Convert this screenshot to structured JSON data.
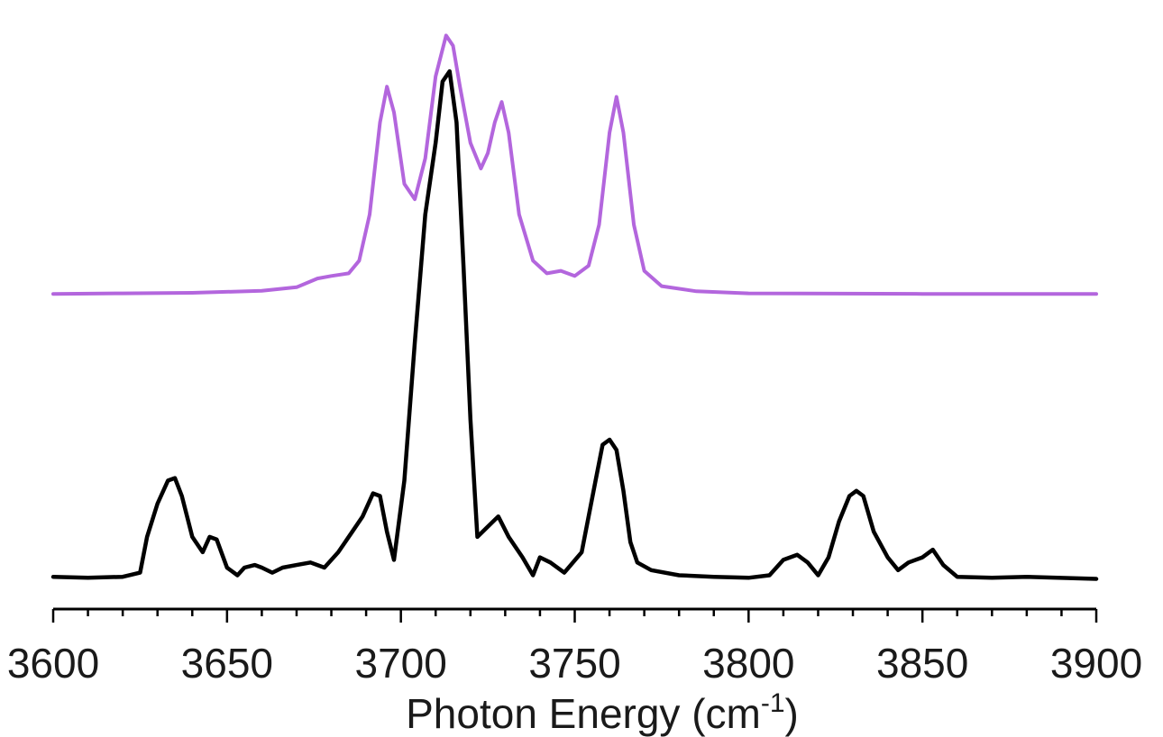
{
  "chart_data": {
    "type": "line",
    "title": "",
    "xlabel": "Photon Energy (cm",
    "xlabel_sup": "-1",
    "xlabel_suffix": ")",
    "ylabel": "",
    "xlim": [
      3600,
      3900
    ],
    "ylim": [
      0,
      1.12
    ],
    "x_ticks": [
      3600,
      3650,
      3700,
      3750,
      3800,
      3850,
      3900
    ],
    "x_minor_step": 10,
    "grid": false,
    "legend": "none",
    "series": [
      {
        "color": "#b366dd",
        "x": [
          3600,
          3620,
          3640,
          3660,
          3670,
          3676,
          3680,
          3685,
          3688,
          3691,
          3694,
          3696,
          3698,
          3701,
          3704,
          3707,
          3710,
          3713,
          3715,
          3717,
          3720,
          3723,
          3725,
          3727,
          3729,
          3731,
          3734,
          3738,
          3742,
          3746,
          3750,
          3754,
          3757,
          3760,
          3762,
          3764,
          3767,
          3770,
          3775,
          3785,
          3800,
          3850,
          3900
        ],
        "y": [
          0.565,
          0.566,
          0.567,
          0.571,
          0.578,
          0.595,
          0.6,
          0.605,
          0.63,
          0.72,
          0.9,
          0.97,
          0.92,
          0.78,
          0.75,
          0.83,
          0.99,
          1.07,
          1.05,
          0.97,
          0.86,
          0.81,
          0.84,
          0.9,
          0.94,
          0.88,
          0.72,
          0.63,
          0.605,
          0.61,
          0.6,
          0.62,
          0.7,
          0.88,
          0.95,
          0.88,
          0.7,
          0.61,
          0.58,
          0.57,
          0.566,
          0.565,
          0.565
        ]
      },
      {
        "color": "#000000",
        "x": [
          3600,
          3610,
          3620,
          3625,
          3627,
          3630,
          3633,
          3635,
          3637,
          3640,
          3643,
          3645,
          3647,
          3650,
          3653,
          3655,
          3658,
          3660,
          3663,
          3666,
          3670,
          3674,
          3678,
          3682,
          3686,
          3689,
          3692,
          3694,
          3696,
          3698,
          3701,
          3704,
          3707,
          3710,
          3712,
          3714,
          3716,
          3718,
          3720,
          3722,
          3725,
          3728,
          3731,
          3735,
          3738,
          3740,
          3743,
          3747,
          3752,
          3756,
          3758,
          3760,
          3762,
          3764,
          3766,
          3768,
          3772,
          3780,
          3790,
          3800,
          3806,
          3810,
          3814,
          3817,
          3820,
          3823,
          3826,
          3829,
          3831,
          3833,
          3836,
          3840,
          3843,
          3846,
          3850,
          3853,
          3856,
          3860,
          3870,
          3880,
          3900
        ],
        "y": [
          0.012,
          0.01,
          0.012,
          0.02,
          0.09,
          0.155,
          0.2,
          0.205,
          0.17,
          0.09,
          0.06,
          0.09,
          0.085,
          0.03,
          0.015,
          0.03,
          0.035,
          0.03,
          0.02,
          0.03,
          0.035,
          0.04,
          0.03,
          0.06,
          0.1,
          0.13,
          0.175,
          0.17,
          0.1,
          0.045,
          0.2,
          0.47,
          0.72,
          0.86,
          0.98,
          1.0,
          0.9,
          0.62,
          0.32,
          0.09,
          0.11,
          0.13,
          0.09,
          0.05,
          0.015,
          0.05,
          0.04,
          0.02,
          0.06,
          0.2,
          0.27,
          0.28,
          0.26,
          0.18,
          0.08,
          0.04,
          0.025,
          0.015,
          0.012,
          0.01,
          0.015,
          0.045,
          0.055,
          0.04,
          0.015,
          0.05,
          0.12,
          0.17,
          0.18,
          0.17,
          0.1,
          0.05,
          0.025,
          0.04,
          0.05,
          0.065,
          0.035,
          0.012,
          0.01,
          0.012,
          0.008
        ]
      }
    ]
  }
}
